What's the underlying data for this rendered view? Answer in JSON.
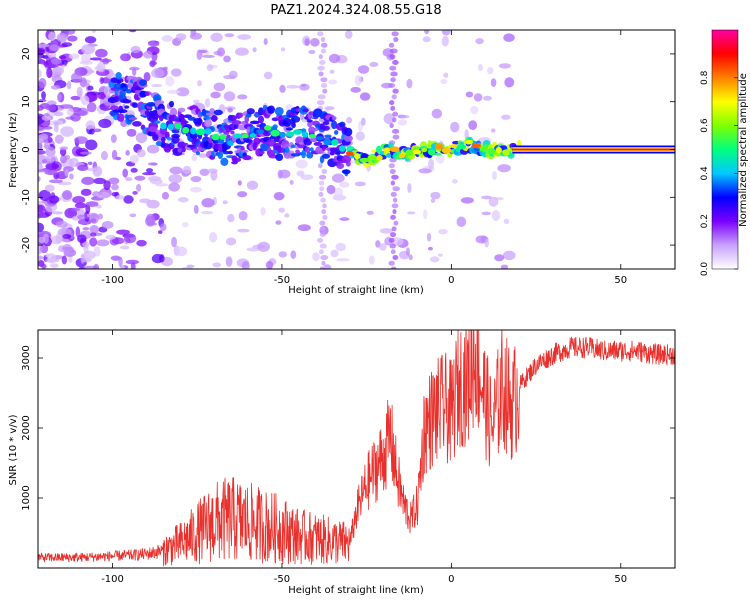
{
  "chart_data": [
    {
      "type": "heatmap",
      "title": "PAZ1.2024.324.08.55.G18",
      "xlabel": "Height of straight line (km)",
      "ylabel": "Frequency (Hz)",
      "xlim": [
        -122,
        66
      ],
      "ylim": [
        -25,
        25
      ],
      "xticks": [
        -100,
        -50,
        0,
        50
      ],
      "yticks": [
        20,
        10,
        0,
        -10,
        -20
      ],
      "grid": false,
      "ridge": [
        {
          "x": -95,
          "y": 11
        },
        {
          "x": -90,
          "y": 9
        },
        {
          "x": -85,
          "y": 5
        },
        {
          "x": -80,
          "y": 4
        },
        {
          "x": -75,
          "y": 4
        },
        {
          "x": -70,
          "y": 3
        },
        {
          "x": -65,
          "y": 2
        },
        {
          "x": -60,
          "y": 3
        },
        {
          "x": -55,
          "y": 4
        },
        {
          "x": -50,
          "y": 3
        },
        {
          "x": -45,
          "y": 4
        },
        {
          "x": -40,
          "y": 3
        },
        {
          "x": -35,
          "y": 2
        },
        {
          "x": -30,
          "y": -1
        },
        {
          "x": -27,
          "y": -2
        },
        {
          "x": -24,
          "y": -2
        },
        {
          "x": -21,
          "y": -1
        },
        {
          "x": -19,
          "y": 0
        },
        {
          "x": -14,
          "y": -1
        },
        {
          "x": -10,
          "y": 0
        },
        {
          "x": -5,
          "y": 0
        },
        {
          "x": 0,
          "y": 0
        },
        {
          "x": 5,
          "y": 1
        },
        {
          "x": 10,
          "y": 0
        },
        {
          "x": 15,
          "y": 0
        },
        {
          "x": 20,
          "y": 0
        },
        {
          "x": 30,
          "y": 0
        },
        {
          "x": 40,
          "y": 0
        },
        {
          "x": 50,
          "y": 0
        },
        {
          "x": 66,
          "y": 0
        }
      ],
      "colorbar": {
        "label": "Normalized spectral amplitude",
        "ticks": [
          "0.0",
          "0.2",
          "0.4",
          "0.6",
          "0.8"
        ],
        "range": [
          0,
          1
        ],
        "colormap": [
          "#ffffff",
          "#c8a0ff",
          "#7a00ff",
          "#0000ff",
          "#00c8ff",
          "#00ff80",
          "#80ff00",
          "#ffff00",
          "#ff8000",
          "#ff0000",
          "#ff00a0"
        ]
      }
    },
    {
      "type": "line",
      "xlabel": "Height of straight line (km)",
      "ylabel": "SNR (10 * v/v)",
      "xlim": [
        -122,
        66
      ],
      "ylim": [
        0,
        3400
      ],
      "xticks": [
        -100,
        -50,
        0,
        50
      ],
      "yticks": [
        1000,
        2000,
        3000
      ],
      "grid": false,
      "color": "#e8302c",
      "series": [
        {
          "x": [
            -122,
            -110,
            -100,
            -95,
            -90,
            -85,
            -80,
            -75,
            -70,
            -65,
            -60,
            -55,
            -50,
            -45,
            -40,
            -35,
            -30,
            -28,
            -25,
            -22,
            -20,
            -18,
            -16,
            -14,
            -12,
            -10,
            -8,
            -5,
            -2,
            0,
            2,
            5,
            7,
            10,
            12,
            15,
            18,
            20,
            25,
            30,
            35,
            40,
            45,
            50,
            55,
            60,
            66
          ],
          "values": [
            150,
            150,
            170,
            180,
            200,
            250,
            350,
            500,
            650,
            700,
            650,
            600,
            550,
            450,
            420,
            380,
            350,
            800,
            1200,
            1450,
            1600,
            1900,
            1300,
            900,
            700,
            900,
            2000,
            2200,
            2300,
            2200,
            2600,
            2700,
            3100,
            2400,
            2000,
            2600,
            2300,
            2600,
            2900,
            3050,
            3150,
            3150,
            3100,
            3100,
            3100,
            3050,
            3050
          ]
        }
      ]
    }
  ]
}
